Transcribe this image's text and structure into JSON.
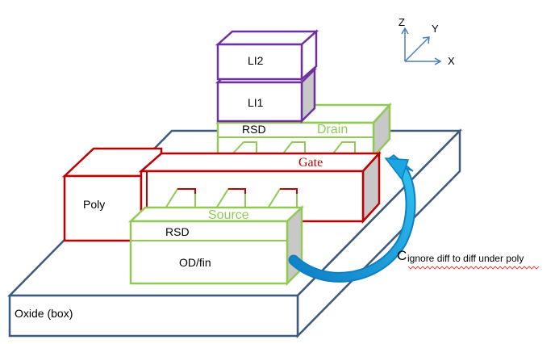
{
  "labels": {
    "li2": "LI2",
    "li1": "LI1",
    "rsd_top": "RSD",
    "drain": "Drain",
    "gate": "Gate",
    "poly": "Poly",
    "source": "Source",
    "rsd_bottom": "RSD",
    "od_fin": "OD/fin",
    "oxide": "Oxide (box)"
  },
  "axes": {
    "z": "Z",
    "y": "Y",
    "x": "X"
  },
  "note": {
    "cap": "C",
    "text": "ignore diff to diff under poly"
  },
  "colors": {
    "oxide": "#3f5a7f",
    "green": "#92c954",
    "red": "#c00000",
    "purple": "#7030a0",
    "side_gray": "#c8c8c8",
    "arrow": "#1aa6e0",
    "axis": "#4a7fb5"
  }
}
